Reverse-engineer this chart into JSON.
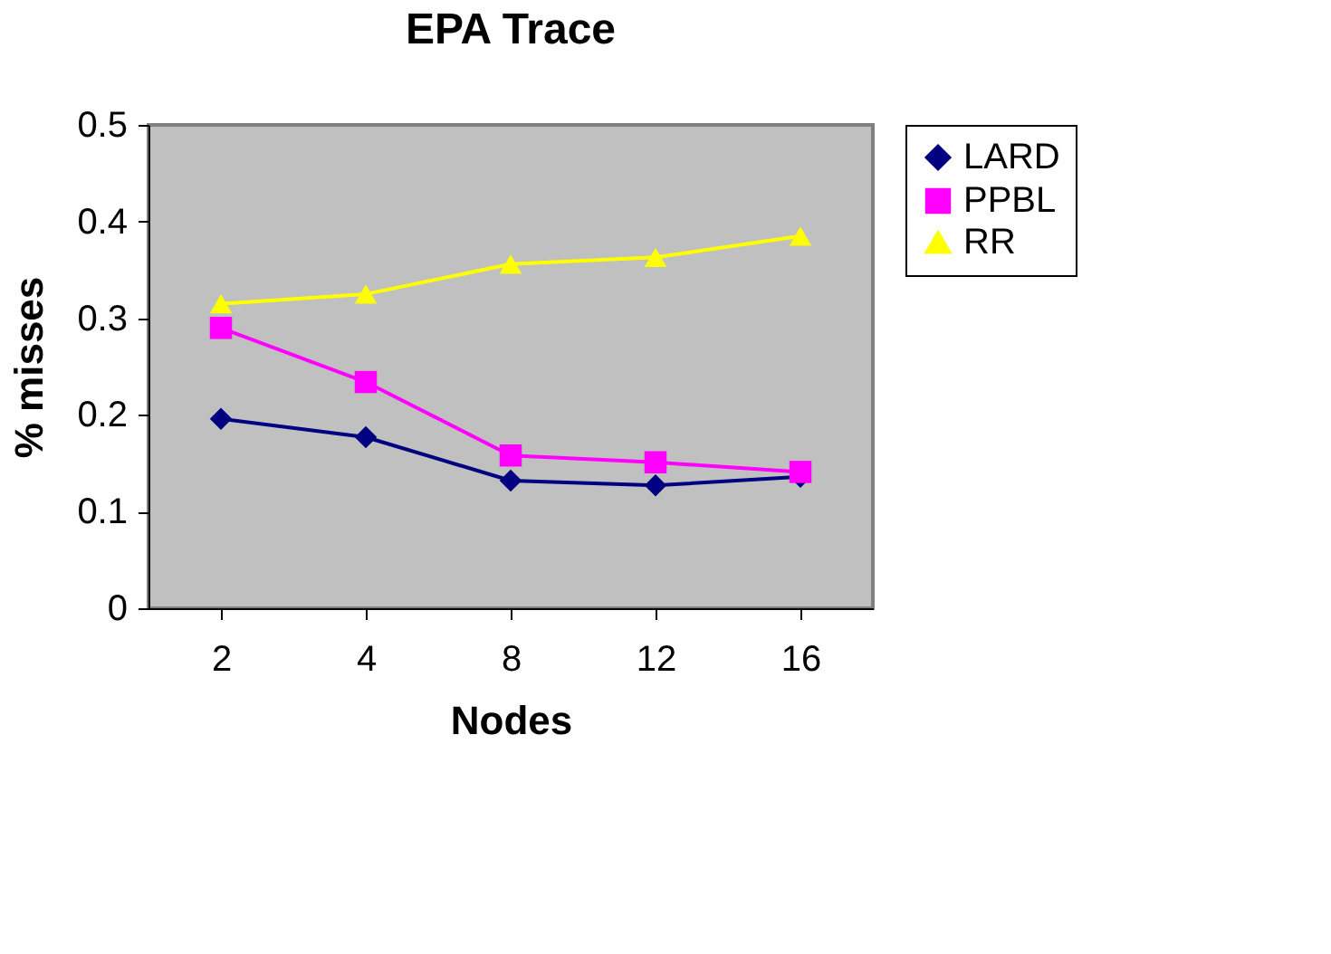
{
  "chart_data": {
    "type": "line",
    "title": "EPA Trace",
    "xlabel": "Nodes",
    "ylabel": "% misses",
    "categories": [
      "2",
      "4",
      "8",
      "12",
      "16"
    ],
    "series": [
      {
        "name": "LARD",
        "color": "#000080",
        "marker": "diamond",
        "values": [
          0.196,
          0.177,
          0.132,
          0.127,
          0.136
        ]
      },
      {
        "name": "PPBL",
        "color": "#ff00ff",
        "marker": "square",
        "values": [
          0.29,
          0.234,
          0.158,
          0.151,
          0.141
        ]
      },
      {
        "name": "RR",
        "color": "#ffff00",
        "marker": "triangle",
        "values": [
          0.315,
          0.325,
          0.356,
          0.363,
          0.385
        ]
      }
    ],
    "ylim": [
      0,
      0.5
    ],
    "yticks": [
      0,
      0.1,
      0.2,
      0.3,
      0.4,
      0.5
    ],
    "grid": false,
    "legend": "right",
    "line_style": "solid"
  }
}
